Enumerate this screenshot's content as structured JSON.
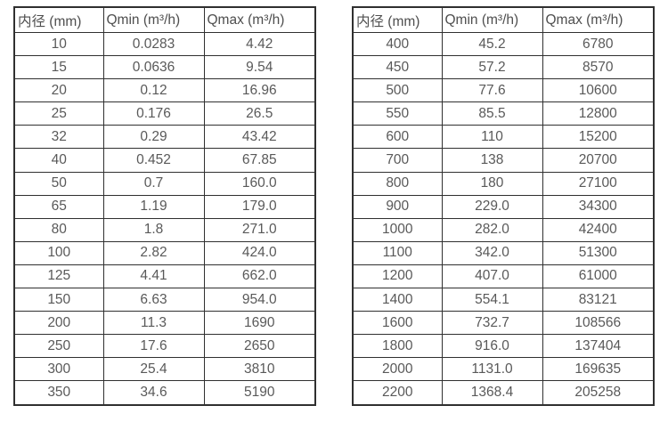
{
  "colors": {
    "background": "#ffffff",
    "border": "#303030",
    "text": "#595959"
  },
  "tables": [
    {
      "name": "flow-table-dn10-350",
      "headers": [
        "内径 (mm)",
        "Qmin (m³/h)",
        "Qmax (m³/h)"
      ],
      "rows": [
        [
          "10",
          "0.0283",
          "4.42"
        ],
        [
          "15",
          "0.0636",
          "9.54"
        ],
        [
          "20",
          "0.12",
          "16.96"
        ],
        [
          "25",
          "0.176",
          "26.5"
        ],
        [
          "32",
          "0.29",
          "43.42"
        ],
        [
          "40",
          "0.452",
          "67.85"
        ],
        [
          "50",
          "0.7",
          "160.0"
        ],
        [
          "65",
          "1.19",
          "179.0"
        ],
        [
          "80",
          "1.8",
          "271.0"
        ],
        [
          "100",
          "2.82",
          "424.0"
        ],
        [
          "125",
          "4.41",
          "662.0"
        ],
        [
          "150",
          "6.63",
          "954.0"
        ],
        [
          "200",
          "11.3",
          "1690"
        ],
        [
          "250",
          "17.6",
          "2650"
        ],
        [
          "300",
          "25.4",
          "3810"
        ],
        [
          "350",
          "34.6",
          "5190"
        ]
      ]
    },
    {
      "name": "flow-table-dn400-2200",
      "headers": [
        "内径 (mm)",
        "Qmin (m³/h)",
        "Qmax (m³/h)"
      ],
      "rows": [
        [
          "400",
          "45.2",
          "6780"
        ],
        [
          "450",
          "57.2",
          "8570"
        ],
        [
          "500",
          "77.6",
          "10600"
        ],
        [
          "550",
          "85.5",
          "12800"
        ],
        [
          "600",
          "110",
          "15200"
        ],
        [
          "700",
          "138",
          "20700"
        ],
        [
          "800",
          "180",
          "27100"
        ],
        [
          "900",
          "229.0",
          "34300"
        ],
        [
          "1000",
          "282.0",
          "42400"
        ],
        [
          "1100",
          "342.0",
          "51300"
        ],
        [
          "1200",
          "407.0",
          "61000"
        ],
        [
          "1400",
          "554.1",
          "83121"
        ],
        [
          "1600",
          "732.7",
          "108566"
        ],
        [
          "1800",
          "916.0",
          "137404"
        ],
        [
          "2000",
          "1131.0",
          "169635"
        ],
        [
          "2200",
          "1368.4",
          "205258"
        ]
      ]
    }
  ]
}
